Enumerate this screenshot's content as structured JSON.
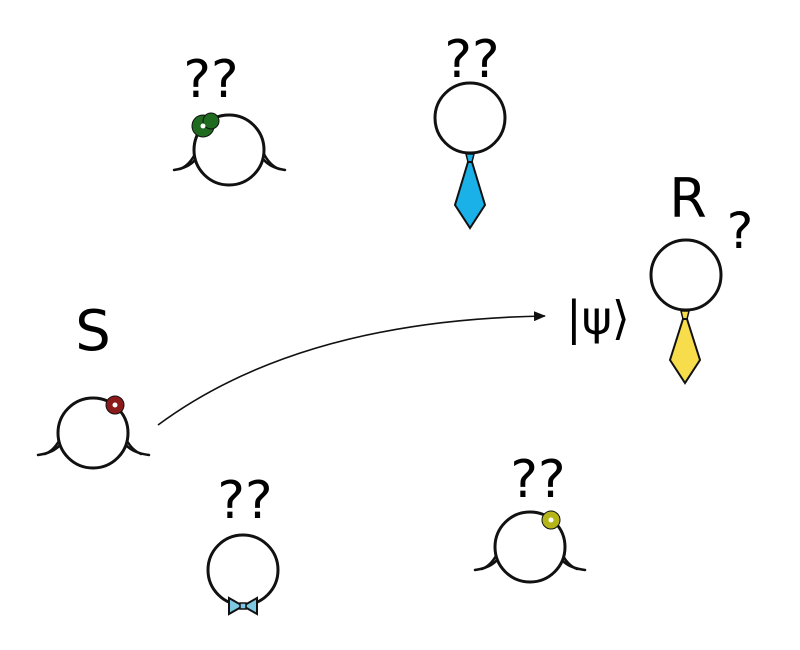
{
  "labels": {
    "sender": "S",
    "receiver": "R",
    "receiver_question": "?",
    "state": "|ψ⟩",
    "unknown_top_left": "??",
    "unknown_top_center": "??",
    "unknown_bottom_left": "??",
    "unknown_bottom_right": "??"
  },
  "colors": {
    "sender_flower": "#8b1a1a",
    "top_left_flower": "#1f6b1f",
    "top_center_tie": "#1ab0e8",
    "receiver_tie": "#f7dc4b",
    "bottom_left_bowtie": "#7ec8e3",
    "bottom_right_flower": "#b5b51a",
    "outline": "#111111"
  },
  "icons": {
    "sender": "person-with-flower-icon",
    "receiver": "person-with-tie-icon",
    "top_left": "person-with-flower-icon",
    "top_center": "person-with-tie-icon",
    "bottom_left": "person-with-bowtie-icon",
    "bottom_right": "person-with-flower-icon"
  }
}
